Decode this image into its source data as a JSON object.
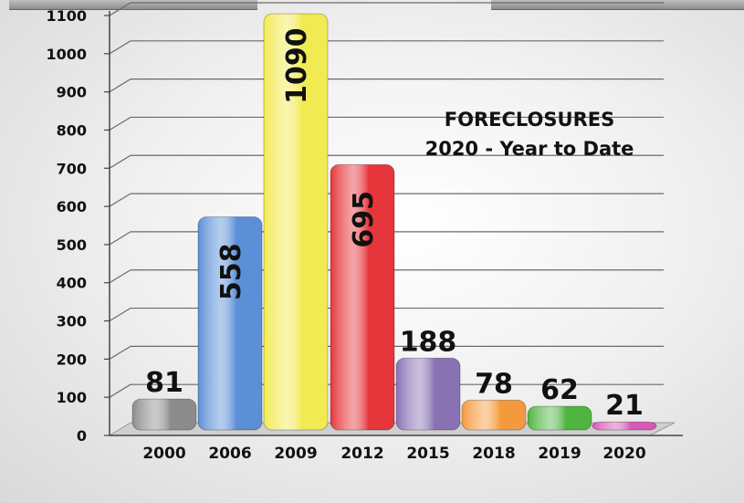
{
  "chart_data": {
    "type": "bar",
    "title": "FORECLOSURES",
    "subtitle": "2020 - Year to Date",
    "categories": [
      "2000",
      "2006",
      "2009",
      "2012",
      "2015",
      "2018",
      "2019",
      "2020"
    ],
    "values": [
      81,
      558,
      1090,
      695,
      188,
      78,
      62,
      21
    ],
    "data_labels": [
      "81",
      "558",
      "1090",
      "695",
      "188",
      "78",
      "62",
      "21"
    ],
    "colors": [
      "#8c8c8c",
      "#5b8fd6",
      "#f2ea52",
      "#e6353b",
      "#8872b3",
      "#f59a3c",
      "#4fb541",
      "#d957b5"
    ],
    "ylim": [
      0,
      1100
    ],
    "yticks": [
      "0",
      "100",
      "200",
      "300",
      "400",
      "500",
      "600",
      "700",
      "800",
      "900",
      "1000",
      "1100"
    ],
    "grid": true,
    "xlabel": "",
    "ylabel": ""
  }
}
